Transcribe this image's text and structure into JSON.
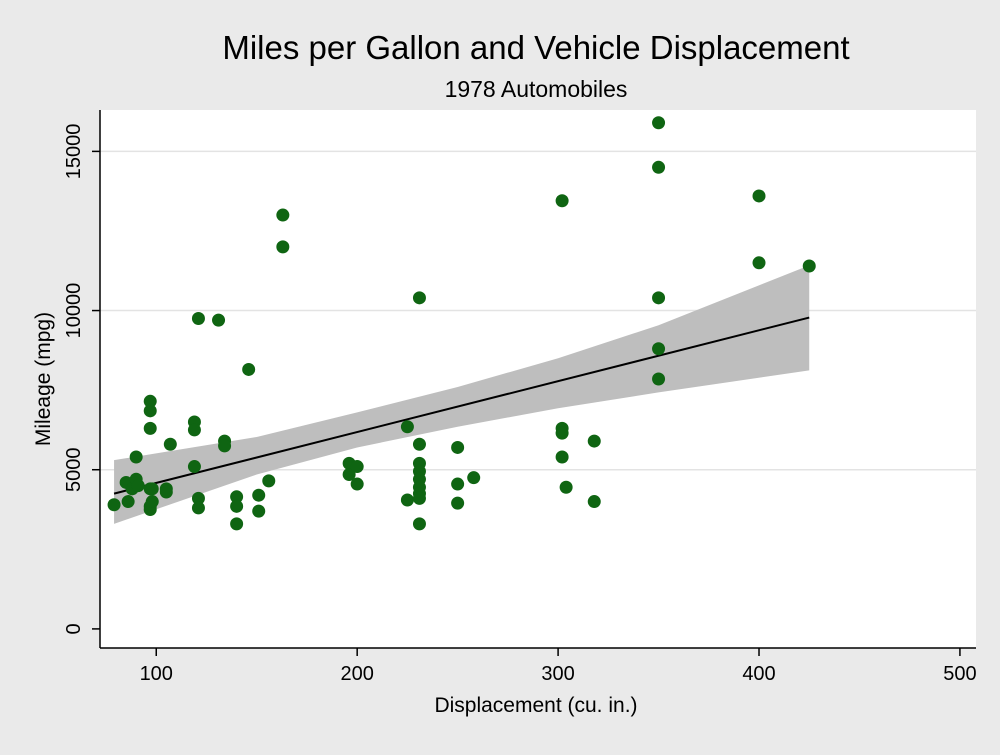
{
  "chart_data": {
    "type": "scatter",
    "title": "Miles per Gallon and Vehicle Displacement",
    "subtitle": "1978 Automobiles",
    "xlabel": "Displacement (cu. in.)",
    "ylabel": "Mileage (mpg)",
    "xlim": [
      72,
      508
    ],
    "ylim": [
      -600,
      16300
    ],
    "x_ticks": [
      100,
      200,
      300,
      400,
      500
    ],
    "y_ticks": [
      0,
      5000,
      10000,
      15000
    ],
    "grid": "horizontal",
    "legend": "none",
    "colors": {
      "background": "#eaeaea",
      "plot_area": "#ffffff",
      "points": "#0f6512",
      "fit_line": "#000000",
      "confidence_band": "#bebebe",
      "gridline": "#e3e3e3"
    },
    "fit_line": {
      "x": [
        79,
        425
      ],
      "y": [
        4250,
        9780
      ]
    },
    "confidence_band": {
      "x": [
        79,
        150,
        200,
        250,
        300,
        350,
        425
      ],
      "lower": [
        3300,
        4850,
        5700,
        6350,
        6930,
        7430,
        8120
      ],
      "upper": [
        5300,
        6030,
        6800,
        7600,
        8500,
        9540,
        11420
      ]
    },
    "points": {
      "x": [
        79,
        85,
        86,
        88,
        90,
        90,
        91,
        97,
        97,
        97,
        97,
        97,
        97,
        98,
        98,
        105,
        105,
        107,
        119,
        119,
        119,
        121,
        121,
        121,
        131,
        134,
        134,
        140,
        140,
        140,
        146,
        151,
        151,
        156,
        163,
        163,
        196,
        196,
        200,
        200,
        225,
        225,
        231,
        231,
        231,
        231,
        231,
        231,
        231,
        231,
        231,
        250,
        250,
        250,
        258,
        302,
        302,
        302,
        302,
        304,
        318,
        318,
        350,
        350,
        350,
        350,
        350,
        400,
        400,
        425
      ],
      "y": [
        3900,
        4600,
        4000,
        4400,
        4700,
        5400,
        4500,
        7150,
        6850,
        6300,
        4400,
        3850,
        3750,
        4400,
        4000,
        4400,
        4300,
        5800,
        6500,
        6250,
        5100,
        9750,
        4100,
        3800,
        9700,
        5900,
        5750,
        4150,
        3850,
        3300,
        8150,
        4200,
        3700,
        4650,
        13000,
        12000,
        5200,
        4850,
        5100,
        4550,
        6350,
        4050,
        10400,
        5800,
        5200,
        4950,
        4700,
        4450,
        4250,
        4100,
        3300,
        5700,
        4550,
        3950,
        4750,
        13450,
        6300,
        6150,
        5400,
        4450,
        5900,
        4000,
        15900,
        14500,
        10400,
        8800,
        7850,
        13600,
        11500,
        11400
      ]
    }
  }
}
